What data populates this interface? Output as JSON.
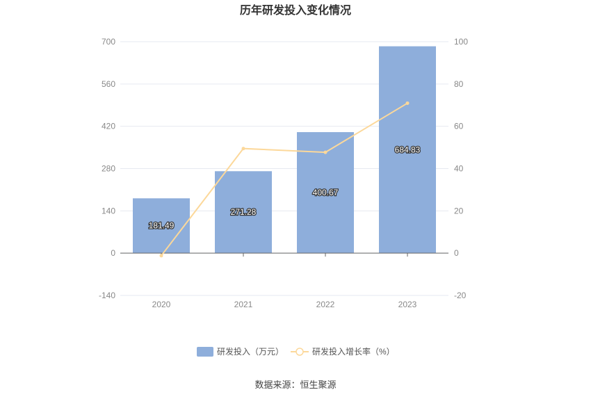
{
  "chart_data": {
    "type": "bar",
    "title": "历年研发投入变化情况",
    "categories": [
      "2020",
      "2021",
      "2022",
      "2023"
    ],
    "series": [
      {
        "name": "研发投入（万元）",
        "type": "bar",
        "axis": "left",
        "values": [
          181.49,
          271.28,
          400.67,
          684.83
        ],
        "labels": [
          "181.49",
          "271.28",
          "400.67",
          "684.83"
        ],
        "color": "#8eaedb"
      },
      {
        "name": "研发投入增长率（%）",
        "type": "line",
        "axis": "right",
        "values": [
          -1.2,
          49.47,
          47.7,
          70.92
        ],
        "color": "#fcd89a"
      }
    ],
    "left_axis": {
      "ticks": [
        "700",
        "560",
        "420",
        "280",
        "140",
        "0",
        "-140"
      ],
      "range": [
        -140,
        700
      ]
    },
    "right_axis": {
      "ticks": [
        "100",
        "80",
        "60",
        "40",
        "20",
        "0",
        "-20"
      ],
      "range": [
        -20,
        100
      ]
    },
    "legend_position": "bottom",
    "source": "数据来源：恒生聚源"
  }
}
